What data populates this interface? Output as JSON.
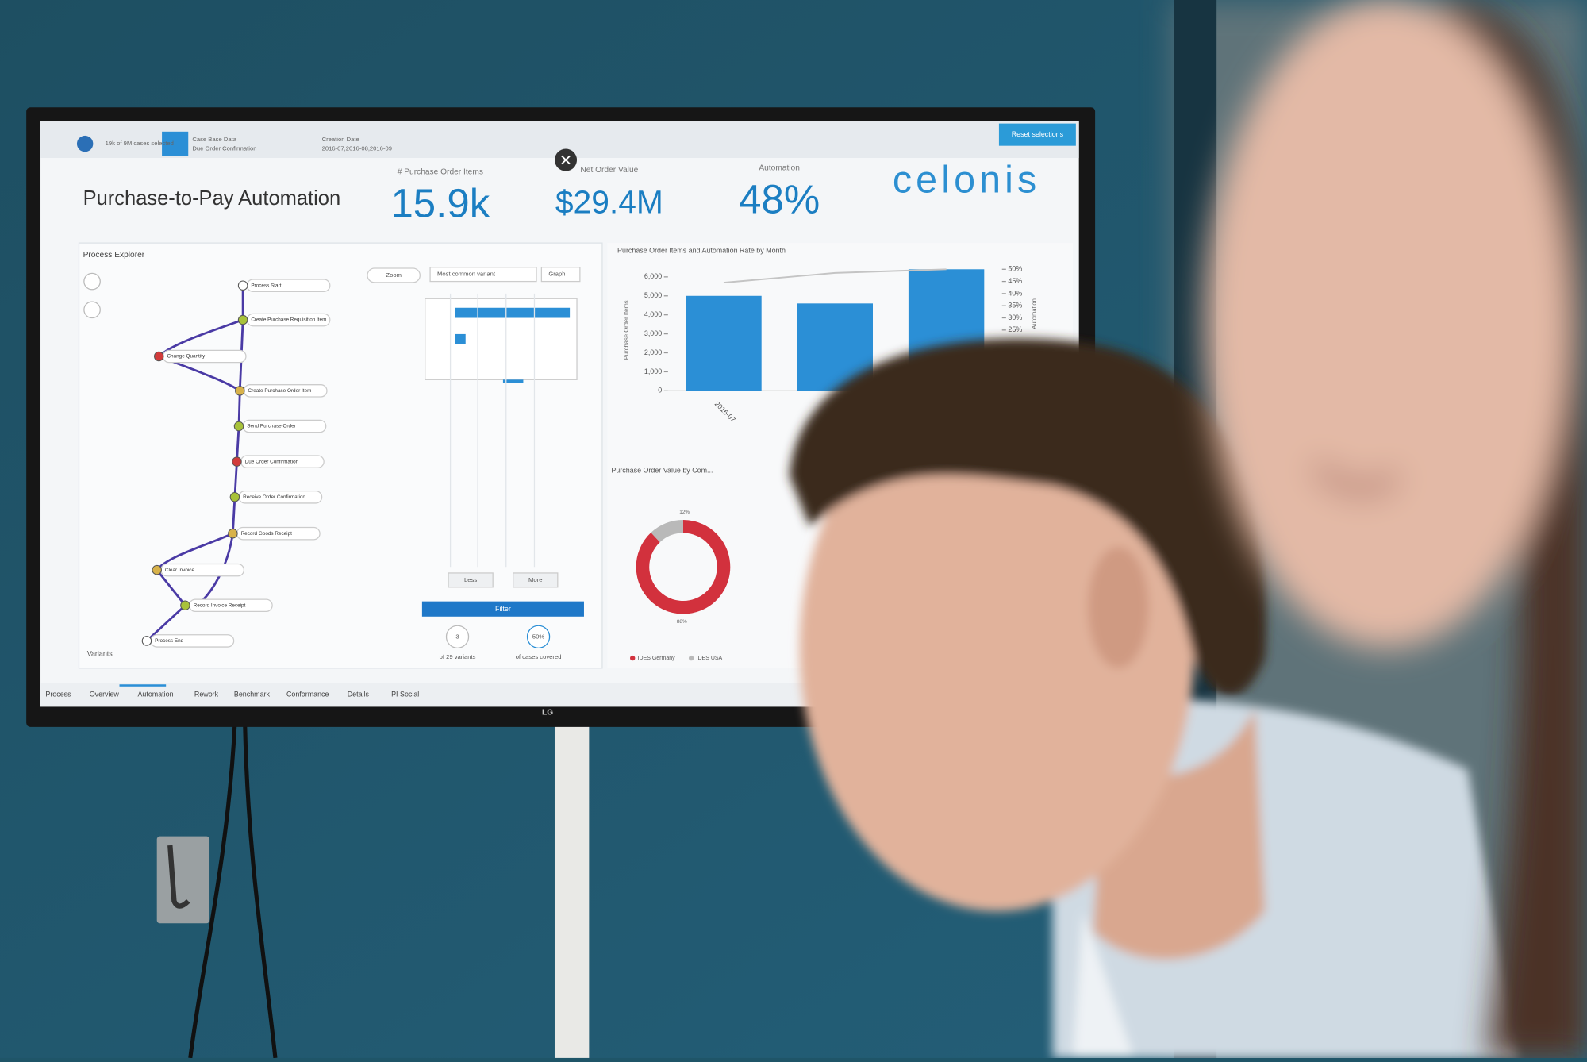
{
  "header": {
    "selection": "19k of 9M cases selected",
    "filter_1_title": "Case Base Data",
    "filter_1_value": "Due Order Confirmation",
    "filter_2_title": "Creation Date",
    "filter_2_value": "2016-07,2016-08,2016-09",
    "reset": "Reset selections"
  },
  "title": "Purchase-to-Pay Automation",
  "kpis": [
    {
      "label": "# Purchase Order Items",
      "value": "15.9k"
    },
    {
      "label": "Net Order Value",
      "value": "$29.4M"
    },
    {
      "label": "Automation",
      "value": "48%"
    }
  ],
  "logo": "celonis",
  "process_explorer": {
    "title": "Process Explorer",
    "zoom": "Zoom",
    "variant_select": "Most common variant",
    "graph": "Graph",
    "activities": [
      "Process Start",
      "Create Purchase Requisition Item",
      "Change Quantity",
      "Create Purchase Order Item",
      "Send Purchase Order",
      "Due Order Confirmation",
      "Receive Order Confirmation",
      "Record Goods Receipt",
      "Clear Invoice",
      "Record Invoice Receipt",
      "Process End"
    ],
    "less": "Less",
    "more": "More",
    "filter": "Filter",
    "variant_count": "3",
    "variant_count_label": "of 29 variants",
    "coverage": "50%",
    "coverage_label": "of cases covered",
    "footer": "Variants"
  },
  "chart_data": [
    {
      "type": "bar",
      "title": "Purchase Order Items and Automation Rate by Month",
      "y_label": "Purchase Order Items",
      "y2_label": "Automation",
      "categories": [
        "2016-07",
        null,
        null
      ],
      "series": [
        {
          "values": [
            5000,
            4600,
            6400
          ],
          "color": "#2b8fd6"
        },
        {
          "values": [
            44.5,
            48.5,
            50
          ],
          "color": "#c4c4c4",
          "axis": "y2"
        }
      ],
      "ylim": [
        0,
        6400
      ],
      "yticks": [
        0,
        {
          "value": 1000,
          "label": "1,000"
        },
        {
          "value": 2000,
          "label": "2,000"
        },
        {
          "value": 3000,
          "label": "3,000"
        },
        {
          "value": 4000,
          "label": "4,000"
        },
        {
          "value": 5000,
          "label": "5,000"
        },
        {
          "value": 6000,
          "label": "6,000"
        }
      ],
      "y2lim": [
        0,
        50
      ],
      "y2ticks": [
        {
          "value": 25,
          "label": "25%"
        },
        {
          "value": 30,
          "label": "30%"
        },
        {
          "value": 35,
          "label": "35%"
        },
        {
          "value": 40,
          "label": "40%"
        },
        {
          "value": 45,
          "label": "45%"
        },
        {
          "value": 50,
          "label": "50%"
        }
      ]
    },
    {
      "type": "pie",
      "title": "Purchase Order Value by Com...",
      "categories": [
        "IDES Germany",
        "IDES USA"
      ],
      "values": [
        88,
        12
      ],
      "value_labels": [
        "88%",
        "12%"
      ],
      "colors": [
        "#d2313d",
        "#b9b9b9"
      ]
    }
  ],
  "tabs": [
    "Process",
    "Overview",
    "Automation",
    "Rework",
    "Benchmark",
    "Conformance",
    "Details",
    "PI Social"
  ],
  "brand": "LG"
}
